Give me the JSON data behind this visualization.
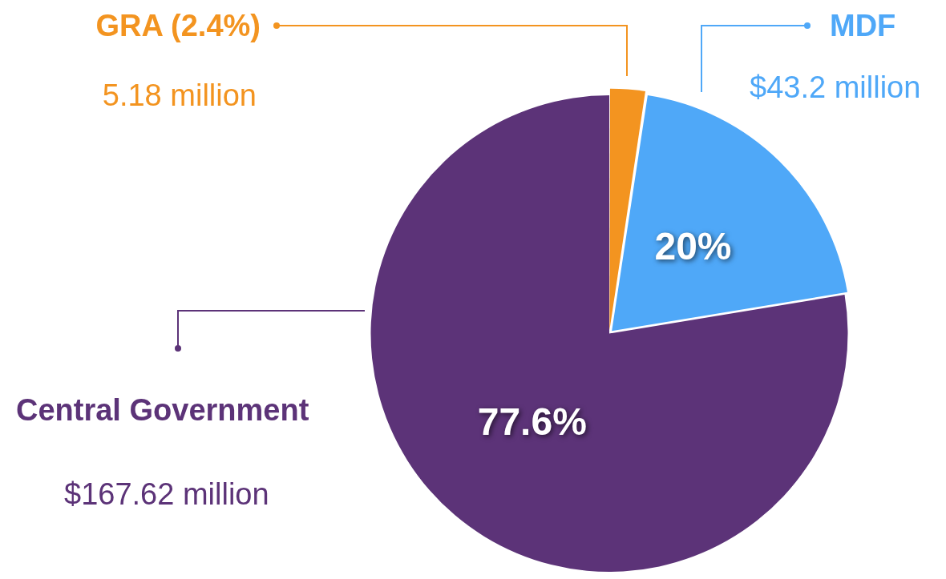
{
  "chart_data": {
    "type": "pie",
    "categories": [
      "GRA (2.4%)",
      "MDF",
      "Central Government"
    ],
    "values": [
      5.18,
      43.2,
      167.62
    ],
    "colors": [
      "#f39420",
      "#4fa8f8",
      "#5c3378"
    ],
    "value_labels": [
      "5.18 million",
      "$43.2 million",
      "$167.62 million"
    ],
    "annotations": [
      {
        "text": "20%",
        "x": "MDF"
      },
      {
        "text": "77.6%",
        "x": "Central Government"
      }
    ]
  }
}
